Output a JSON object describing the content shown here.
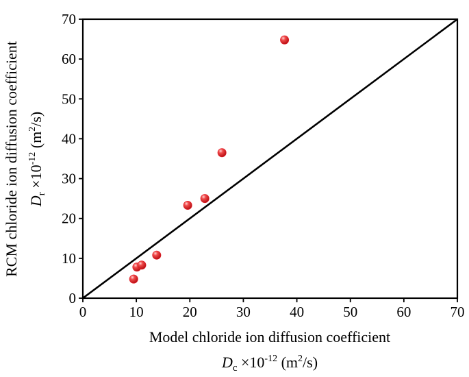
{
  "chart_data": {
    "type": "scatter",
    "title": "",
    "xlabel": {
      "line1": "Model chloride ion diffusion coefficient",
      "symbol": "D",
      "subscript": "c",
      "factor": " ×10",
      "exponent": "-12",
      "unit_open": " (m",
      "unit_exp": "2",
      "unit_close": "/s)"
    },
    "ylabel": {
      "line1": "RCM chloride ion diffusion coefficient",
      "symbol": "D",
      "subscript": "r",
      "factor": " ×10",
      "exponent": "-12",
      "unit_open": " (m",
      "unit_exp": "2",
      "unit_close": "/s)"
    },
    "xlim": [
      0,
      70
    ],
    "ylim": [
      0,
      70
    ],
    "xticks": [
      0,
      10,
      20,
      30,
      40,
      50,
      60,
      70
    ],
    "yticks": [
      0,
      10,
      20,
      30,
      40,
      50,
      60,
      70
    ],
    "grid": false,
    "reference_line": {
      "type": "y=x",
      "from": [
        0,
        0
      ],
      "to": [
        70,
        70
      ],
      "color": "#000000"
    },
    "marker_color": "#e8202a",
    "points": [
      {
        "x": 9.5,
        "y": 4.8
      },
      {
        "x": 10.1,
        "y": 7.8
      },
      {
        "x": 11.0,
        "y": 8.3
      },
      {
        "x": 13.8,
        "y": 10.8
      },
      {
        "x": 19.6,
        "y": 23.3
      },
      {
        "x": 22.8,
        "y": 25.0
      },
      {
        "x": 26.0,
        "y": 36.5
      },
      {
        "x": 37.7,
        "y": 64.8
      }
    ]
  }
}
